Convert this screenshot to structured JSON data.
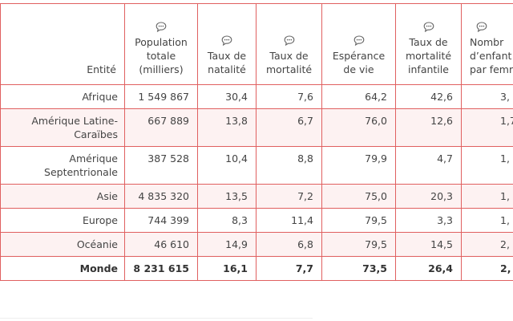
{
  "table": {
    "headers": [
      "Entité",
      "Population\ntotale\n(milliers)",
      "Taux de\nnatalité",
      "Taux de\nmortalité",
      "Espérance\nde vie",
      "Taux de\nmortalité\ninfantile",
      "Nombr\nd’enfant\npar femm"
    ],
    "rows": [
      [
        "Afrique",
        "1 549 867",
        "30,4",
        "7,6",
        "64,2",
        "42,6",
        "3,"
      ],
      [
        "Amérique Latine-\nCaraïbes",
        "667 889",
        "13,8",
        "6,7",
        "76,0",
        "12,6",
        "1,7"
      ],
      [
        "Amérique\nSeptentrionale",
        "387 528",
        "10,4",
        "8,8",
        "79,9",
        "4,7",
        "1,"
      ],
      [
        "Asie",
        "4 835 320",
        "13,5",
        "7,2",
        "75,0",
        "20,3",
        "1,"
      ],
      [
        "Europe",
        "744 399",
        "8,3",
        "11,4",
        "79,5",
        "3,3",
        "1,"
      ],
      [
        "Océanie",
        "46 610",
        "14,9",
        "6,8",
        "79,5",
        "14,5",
        "2,"
      ],
      [
        "Monde",
        "8 231 615",
        "16,1",
        "7,7",
        "73,5",
        "26,4",
        "2,"
      ]
    ]
  }
}
